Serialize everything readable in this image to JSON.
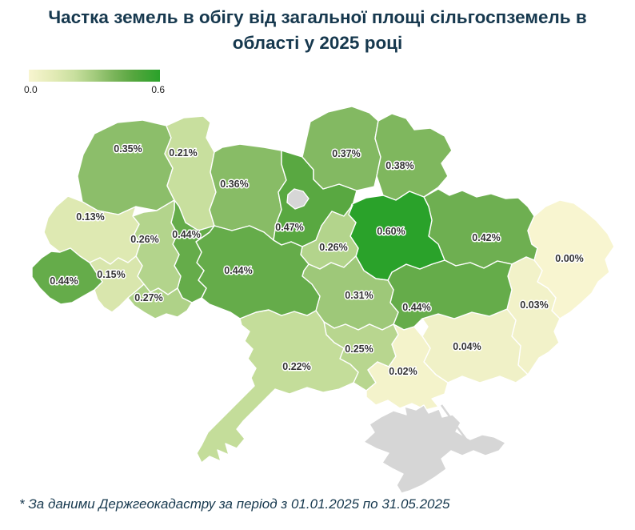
{
  "title": "Частка земель в обігу від загальної площі сільгоспземель в області у 2025 році",
  "footnote": "* За даними Держгеокадастру за період з 01.01.2025 по 31.05.2025",
  "legend": {
    "min_label": "0.0",
    "max_label": "0.6"
  },
  "colors": {
    "title_text": "#16384e",
    "background": "#ffffff",
    "no_data_fill": "#d6d6d6",
    "region_border": "#ffffff",
    "label_text": "#333333",
    "ramp": [
      {
        "t": 0.0,
        "hex": "#f8f5d0"
      },
      {
        "t": 0.2,
        "hex": "#e1eab4"
      },
      {
        "t": 0.35,
        "hex": "#c8df9e"
      },
      {
        "t": 0.5,
        "hex": "#a3cb7d"
      },
      {
        "t": 0.65,
        "hex": "#7ab45a"
      },
      {
        "t": 0.8,
        "hex": "#55a63e"
      },
      {
        "t": 1.0,
        "hex": "#2aa22a"
      }
    ]
  },
  "chart_data": {
    "type": "choropleth",
    "title": "Частка земель в обігу від загальної площі сільгоспземель в області у 2025 році",
    "unit": "%",
    "value_range": [
      0.0,
      0.6
    ],
    "legend_ticks": [
      "0.0",
      "0.6"
    ],
    "source_note": "* За даними Держгеокадастру за період з 01.01.2025 по 31.05.2025",
    "regions": [
      {
        "id": "volyn",
        "name": "Volyn",
        "value": 0.35,
        "label": "0.35%"
      },
      {
        "id": "rivne",
        "name": "Rivne",
        "value": 0.21,
        "label": "0.21%"
      },
      {
        "id": "zhytomyr",
        "name": "Zhytomyr",
        "value": 0.36,
        "label": "0.36%"
      },
      {
        "id": "kyiv-oblast",
        "name": "Kyiv oblast",
        "value": 0.47,
        "label": "0.47%"
      },
      {
        "id": "chernihiv",
        "name": "Chernihiv",
        "value": 0.37,
        "label": "0.37%"
      },
      {
        "id": "sumy",
        "name": "Sumy",
        "value": 0.38,
        "label": "0.38%"
      },
      {
        "id": "kharkiv",
        "name": "Kharkiv",
        "value": 0.42,
        "label": "0.42%"
      },
      {
        "id": "luhansk",
        "name": "Luhansk",
        "value": 0.0,
        "label": "0.00%"
      },
      {
        "id": "donetsk",
        "name": "Donetsk",
        "value": 0.03,
        "label": "0.03%"
      },
      {
        "id": "zaporizhzhia",
        "name": "Zaporizhzhia",
        "value": 0.04,
        "label": "0.04%"
      },
      {
        "id": "dnipropetrovsk",
        "name": "Dnipropetrovsk",
        "value": 0.44,
        "label": "0.44%"
      },
      {
        "id": "poltava",
        "name": "Poltava",
        "value": 0.6,
        "label": "0.60%"
      },
      {
        "id": "cherkasy",
        "name": "Cherkasy",
        "value": 0.26,
        "label": "0.26%"
      },
      {
        "id": "kirovohrad",
        "name": "Kirovohrad",
        "value": 0.31,
        "label": "0.31%"
      },
      {
        "id": "mykolaiv",
        "name": "Mykolaiv",
        "value": 0.25,
        "label": "0.25%"
      },
      {
        "id": "kherson",
        "name": "Kherson",
        "value": 0.02,
        "label": "0.02%"
      },
      {
        "id": "odesa",
        "name": "Odesa",
        "value": 0.22,
        "label": "0.22%"
      },
      {
        "id": "vinnytsia",
        "name": "Vinnytsia",
        "value": 0.44,
        "label": "0.44%"
      },
      {
        "id": "khmelnytskyi",
        "name": "Khmelnytskyi",
        "value": 0.44,
        "label": "0.44%"
      },
      {
        "id": "ternopil",
        "name": "Ternopil",
        "value": 0.26,
        "label": "0.26%"
      },
      {
        "id": "lviv",
        "name": "Lviv",
        "value": 0.13,
        "label": "0.13%"
      },
      {
        "id": "ivano-frankivsk",
        "name": "Ivano-Frankivsk",
        "value": 0.15,
        "label": "0.15%"
      },
      {
        "id": "zakarpattia",
        "name": "Zakarpattia",
        "value": 0.44,
        "label": "0.44%"
      },
      {
        "id": "chernivtsi",
        "name": "Chernivtsi",
        "value": 0.27,
        "label": "0.27%"
      },
      {
        "id": "crimea",
        "name": "Crimea",
        "value": null,
        "label": ""
      }
    ]
  }
}
